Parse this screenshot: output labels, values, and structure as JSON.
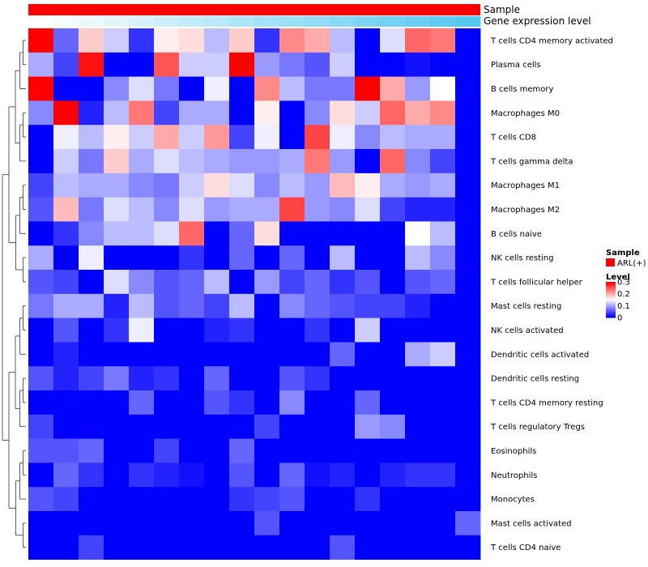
{
  "chart_data": {
    "type": "heatmap",
    "annotation_rows": [
      {
        "label": "Sample",
        "colors_from": "sample_color"
      },
      {
        "label": "Gene expression level",
        "colors_from": "gene_level_gradient"
      }
    ],
    "sample_color": "#ff0000",
    "gene_level_gradient": [
      "#ffffff",
      "#55c8f0"
    ],
    "rows": [
      "T cells CD4 memory activated",
      "Plasma cells",
      "B cells memory",
      "Macrophages M0",
      "T cells CD8",
      "T cells gamma delta",
      "Macrophages M1",
      "Macrophages M2",
      "B cells naive",
      "NK cells resting",
      "T cells follicular helper",
      "Mast cells resting",
      "NK cells activated",
      "Dendritic cells activated",
      "Dendritic cells resting",
      "T cells CD4 memory resting",
      "T cells regulatory  Tregs",
      "Eosinophils",
      "Neutrophils",
      "Monocytes",
      "Mast cells activated",
      "T cells CD4 naive"
    ],
    "n_samples": 18,
    "values": [
      [
        0.3,
        0.06,
        0.18,
        0.12,
        0.03,
        0.16,
        0.17,
        0.11,
        0.18,
        0.03,
        0.22,
        0.2,
        0.11,
        0.0,
        0.13,
        0.24,
        0.23,
        0.0
      ],
      [
        0.1,
        0.04,
        0.29,
        0.0,
        0.0,
        0.25,
        0.12,
        0.12,
        0.3,
        0.09,
        0.07,
        0.05,
        0.12,
        0.0,
        0.0,
        0.01,
        0.0,
        0.0
      ],
      [
        0.3,
        0.0,
        0.0,
        0.08,
        0.13,
        0.07,
        0.0,
        0.14,
        0.0,
        0.22,
        0.11,
        0.07,
        0.07,
        0.3,
        0.2,
        0.09,
        0.15,
        0.0
      ],
      [
        0.08,
        0.3,
        0.02,
        0.11,
        0.23,
        0.04,
        0.1,
        0.1,
        0.0,
        0.16,
        0.0,
        0.08,
        0.17,
        0.12,
        0.24,
        0.2,
        0.22,
        0.0
      ],
      [
        0.0,
        0.14,
        0.11,
        0.16,
        0.12,
        0.2,
        0.12,
        0.21,
        0.04,
        0.14,
        0.0,
        0.26,
        0.14,
        0.08,
        0.11,
        0.1,
        0.1,
        0.0
      ],
      [
        0.0,
        0.12,
        0.07,
        0.18,
        0.1,
        0.13,
        0.11,
        0.1,
        0.09,
        0.09,
        0.1,
        0.23,
        0.09,
        0.0,
        0.24,
        0.08,
        0.04,
        0.0
      ],
      [
        0.04,
        0.11,
        0.1,
        0.1,
        0.08,
        0.07,
        0.12,
        0.17,
        0.13,
        0.08,
        0.11,
        0.09,
        0.19,
        0.16,
        0.1,
        0.09,
        0.1,
        0.0
      ],
      [
        0.05,
        0.19,
        0.07,
        0.13,
        0.11,
        0.08,
        0.13,
        0.09,
        0.1,
        0.1,
        0.26,
        0.09,
        0.08,
        0.13,
        0.04,
        0.02,
        0.02,
        0.0
      ],
      [
        0.0,
        0.03,
        0.08,
        0.11,
        0.11,
        0.13,
        0.24,
        0.0,
        0.06,
        0.17,
        0.0,
        0.0,
        0.0,
        0.0,
        0.0,
        0.15,
        0.11,
        0.0
      ],
      [
        0.1,
        0.0,
        0.14,
        0.0,
        0.0,
        0.0,
        0.03,
        0.0,
        0.06,
        0.0,
        0.06,
        0.0,
        0.11,
        0.0,
        0.0,
        0.11,
        0.08,
        0.0
      ],
      [
        0.05,
        0.04,
        0.0,
        0.13,
        0.08,
        0.05,
        0.06,
        0.11,
        0.0,
        0.09,
        0.04,
        0.06,
        0.03,
        0.05,
        0.0,
        0.05,
        0.06,
        0.0
      ],
      [
        0.07,
        0.1,
        0.1,
        0.02,
        0.11,
        0.05,
        0.06,
        0.04,
        0.11,
        0.0,
        0.08,
        0.06,
        0.05,
        0.04,
        0.04,
        0.02,
        0.0,
        0.0
      ],
      [
        0.0,
        0.05,
        0.0,
        0.03,
        0.14,
        0.0,
        0.0,
        0.02,
        0.03,
        0.0,
        0.0,
        0.03,
        0.0,
        0.12,
        0.0,
        0.0,
        0.0,
        0.0
      ],
      [
        0.0,
        0.02,
        0.0,
        0.0,
        0.0,
        0.0,
        0.0,
        0.0,
        0.0,
        0.0,
        0.0,
        0.0,
        0.06,
        0.0,
        0.0,
        0.1,
        0.12,
        0.0
      ],
      [
        0.05,
        0.02,
        0.04,
        0.07,
        0.02,
        0.03,
        0.0,
        0.06,
        0.0,
        0.0,
        0.05,
        0.03,
        0.0,
        0.0,
        0.0,
        0.0,
        0.0,
        0.0
      ],
      [
        0.0,
        0.0,
        0.0,
        0.0,
        0.06,
        0.0,
        0.0,
        0.05,
        0.03,
        0.0,
        0.08,
        0.0,
        0.0,
        0.06,
        0.0,
        0.0,
        0.0,
        0.0
      ],
      [
        0.04,
        0.0,
        0.0,
        0.0,
        0.0,
        0.0,
        0.0,
        0.0,
        0.0,
        0.04,
        0.0,
        0.0,
        0.0,
        0.09,
        0.08,
        0.0,
        0.0,
        0.0
      ],
      [
        0.05,
        0.05,
        0.06,
        0.0,
        0.0,
        0.04,
        0.0,
        0.0,
        0.06,
        0.0,
        0.0,
        0.0,
        0.0,
        0.0,
        0.0,
        0.0,
        0.0,
        0.0
      ],
      [
        0.0,
        0.06,
        0.03,
        0.0,
        0.03,
        0.02,
        0.01,
        0.0,
        0.05,
        0.0,
        0.06,
        0.01,
        0.02,
        0.0,
        0.02,
        0.03,
        0.03,
        0.0
      ],
      [
        0.05,
        0.04,
        0.0,
        0.0,
        0.0,
        0.0,
        0.0,
        0.0,
        0.03,
        0.04,
        0.05,
        0.0,
        0.0,
        0.03,
        0.0,
        0.0,
        0.0,
        0.0
      ],
      [
        0.0,
        0.0,
        0.0,
        0.0,
        0.0,
        0.0,
        0.0,
        0.0,
        0.0,
        0.05,
        0.0,
        0.0,
        0.0,
        0.0,
        0.0,
        0.0,
        0.0,
        0.06
      ],
      [
        0.0,
        0.0,
        0.04,
        0.0,
        0.0,
        0.0,
        0.0,
        0.0,
        0.0,
        0.0,
        0.0,
        0.0,
        0.05,
        0.0,
        0.0,
        0.0,
        0.0,
        0.0
      ]
    ],
    "color_scale": {
      "min": 0,
      "mid": 0.15,
      "max": 0.3,
      "low_color": "#0000ff",
      "mid_color": "#ffffff",
      "high_color": "#ff0000"
    },
    "legend": {
      "sample_title": "Sample",
      "sample_entry": "ARL(+)",
      "level_title": "Level",
      "level_ticks": [
        "0.3",
        "0.2",
        "0.1",
        "0"
      ],
      "level_tick_values": [
        0.3,
        0.2,
        0.1,
        0
      ]
    },
    "row_dendrogram": true
  }
}
